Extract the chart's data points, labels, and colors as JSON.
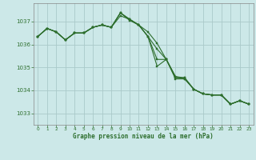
{
  "title": "Graphe pression niveau de la mer (hPa)",
  "background_color": "#cce8e8",
  "grid_color": "#aacaca",
  "line_color": "#2d6e2d",
  "marker_color": "#2d6e2d",
  "xlim": [
    -0.5,
    23.5
  ],
  "ylim": [
    1032.5,
    1037.8
  ],
  "yticks": [
    1033,
    1034,
    1035,
    1036,
    1037
  ],
  "xticks": [
    0,
    1,
    2,
    3,
    4,
    5,
    6,
    7,
    8,
    9,
    10,
    11,
    12,
    13,
    14,
    15,
    16,
    17,
    18,
    19,
    20,
    21,
    22,
    23
  ],
  "series": [
    [
      1036.35,
      1036.7,
      1036.55,
      1036.2,
      1036.5,
      1036.5,
      1036.75,
      1036.85,
      1036.75,
      1037.25,
      1037.1,
      1036.85,
      1036.55,
      1036.05,
      1035.35,
      1034.5,
      1034.5,
      1034.05,
      1033.85,
      1033.8,
      1033.8,
      1033.4,
      1033.55,
      1033.4
    ],
    [
      1036.35,
      1036.7,
      1036.55,
      1036.2,
      1036.5,
      1036.5,
      1036.75,
      1036.85,
      1036.75,
      1037.38,
      1037.1,
      1036.85,
      1036.35,
      1035.8,
      1035.35,
      1034.55,
      1034.55,
      1034.05,
      1033.85,
      1033.8,
      1033.8,
      1033.4,
      1033.55,
      1033.4
    ],
    [
      1036.35,
      1036.7,
      1036.55,
      1036.2,
      1036.5,
      1036.5,
      1036.75,
      1036.85,
      1036.75,
      1037.38,
      1037.1,
      1036.85,
      1036.35,
      1035.35,
      1035.35,
      1034.6,
      1034.55,
      1034.05,
      1033.85,
      1033.8,
      1033.8,
      1033.4,
      1033.55,
      1033.4
    ],
    [
      1036.35,
      1036.7,
      1036.55,
      1036.2,
      1036.5,
      1036.5,
      1036.75,
      1036.85,
      1036.75,
      1037.38,
      1037.05,
      1036.85,
      1036.35,
      1035.05,
      1035.35,
      1034.6,
      1034.5,
      1034.05,
      1033.85,
      1033.8,
      1033.8,
      1033.4,
      1033.55,
      1033.4
    ]
  ]
}
